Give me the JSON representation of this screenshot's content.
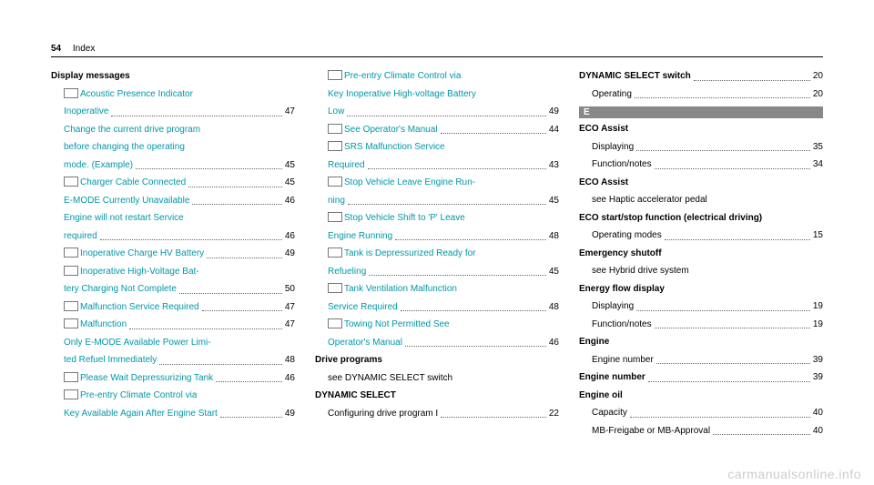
{
  "header": {
    "page": "54",
    "title": "Index"
  },
  "watermark": "carmanualsonline.info",
  "col1": {
    "heading": "Display messages",
    "e1a": "Acoustic Presence Indicator",
    "e1b": "Inoperative",
    "e1p": "47",
    "e2a": "Change the current drive program",
    "e2b": "before changing the operating",
    "e2c": "mode. (Example)",
    "e2p": "45",
    "e3": "Charger Cable Connected",
    "e3p": "45",
    "e4": "E-MODE Currently Unavailable",
    "e4p": "46",
    "e5a": "Engine will not restart Service",
    "e5b": "required",
    "e5p": "46",
    "e6": "Inoperative Charge HV Battery",
    "e6p": "49",
    "e7a": "Inoperative High-Voltage Bat‐",
    "e7b": "tery Charging Not Complete",
    "e7p": "50",
    "e8": "Malfunction Service Required",
    "e8p": "47",
    "e9": "Malfunction",
    "e9p": "47",
    "e10a": "Only E-MODE Available Power Limi‐",
    "e10b": "ted Refuel Immediately",
    "e10p": "48",
    "e11": "Please Wait Depressurizing Tank",
    "e11p": "46",
    "e12a": "Pre-entry Climate Control via",
    "e12b": "Key Available Again After Engine Start",
    "e12p": "49"
  },
  "col2": {
    "e1a": "Pre-entry Climate Control via",
    "e1b": "Key Inoperative High-voltage Battery",
    "e1c": "Low",
    "e1p": "49",
    "e2": "See Operator's Manual",
    "e2p": "44",
    "e3a": "SRS Malfunction Service",
    "e3b": "Required",
    "e3p": "43",
    "e4a": "Stop Vehicle Leave Engine Run‐",
    "e4b": "ning",
    "e4p": "45",
    "e5a": "Stop Vehicle Shift to 'P' Leave",
    "e5b": "Engine Running",
    "e5p": "48",
    "e6a": "Tank is Depressurized Ready for",
    "e6b": "Refueling",
    "e6p": "45",
    "e7a": "Tank Ventilation Malfunction",
    "e7b": "Service Required",
    "e7p": "48",
    "e8a": "Towing Not Permitted See",
    "e8b": "Operator's Manual",
    "e8p": "46",
    "h2": "Drive programs",
    "h2see": "see DYNAMIC SELECT switch",
    "h3": "DYNAMIC SELECT",
    "h3e1": "Configuring drive program I",
    "h3e1p": "22"
  },
  "col3": {
    "e1": "DYNAMIC SELECT switch",
    "e1p": "20",
    "e1a": "Operating",
    "e1ap": "20",
    "letter": "E",
    "h1": "ECO Assist",
    "h1e1": "Displaying",
    "h1e1p": "35",
    "h1e2": "Function/notes",
    "h1e2p": "34",
    "h2": "ECO Assist",
    "h2see": "see Haptic accelerator pedal",
    "h3": "ECO start/stop function (electrical driving)",
    "h3e1": "Operating modes",
    "h3e1p": "15",
    "h4": "Emergency shutoff",
    "h4see": "see Hybrid drive system",
    "h5": "Energy flow display",
    "h5e1": "Displaying",
    "h5e1p": "19",
    "h5e2": "Function/notes",
    "h5e2p": "19",
    "h6": "Engine",
    "h6e1": "Engine number",
    "h6e1p": "39",
    "h7": "Engine number",
    "h7p": "39",
    "h8": "Engine oil",
    "h8e1": "Capacity",
    "h8e1p": "40",
    "h8e2": "MB-Freigabe or MB-Approval",
    "h8e2p": "40"
  }
}
